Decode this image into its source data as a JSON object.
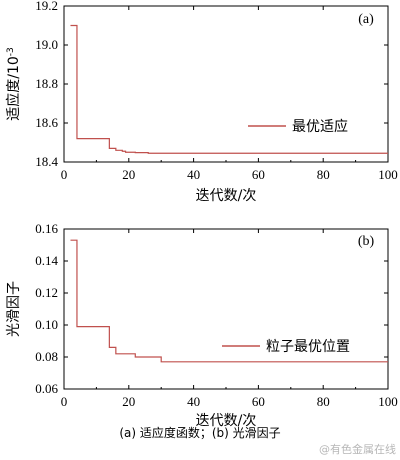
{
  "caption": "(a) 适应度函数；(b) 光滑因子",
  "watermark": "@有色金属在线",
  "colors": {
    "series": "#c0504d",
    "axis": "#000000"
  },
  "chart_data": [
    {
      "type": "line",
      "panel_label": "(a)",
      "xlabel": "迭代数/次",
      "ylabel": "适应度/10",
      "ylabel_exponent": "-3",
      "xlim": [
        0,
        100
      ],
      "ylim": [
        18.4,
        19.2
      ],
      "xticks": [
        0,
        20,
        40,
        60,
        80,
        100
      ],
      "xtick_labels": [
        "0",
        "20",
        "40",
        "60",
        "80",
        "100"
      ],
      "yticks": [
        18.4,
        18.6,
        18.8,
        19.0,
        19.2
      ],
      "ytick_labels": [
        "18.4",
        "18.6",
        "18.8",
        "19.0",
        "19.2"
      ],
      "legend_position": "right",
      "series": [
        {
          "name": "最优适应",
          "step": true,
          "x": [
            2,
            4,
            14,
            16,
            18,
            19,
            22,
            26,
            100
          ],
          "y": [
            19.1,
            18.52,
            18.47,
            18.46,
            18.455,
            18.45,
            18.448,
            18.445,
            18.445
          ]
        }
      ]
    },
    {
      "type": "line",
      "panel_label": "(b)",
      "xlabel": "迭代数/次",
      "ylabel": "光滑因子",
      "xlim": [
        0,
        100
      ],
      "ylim": [
        0.06,
        0.16
      ],
      "xticks": [
        0,
        20,
        40,
        60,
        80,
        100
      ],
      "xtick_labels": [
        "0",
        "20",
        "40",
        "60",
        "80",
        "100"
      ],
      "yticks": [
        0.06,
        0.08,
        0.1,
        0.12,
        0.14,
        0.16
      ],
      "ytick_labels": [
        "0.06",
        "0.08",
        "0.10",
        "0.12",
        "0.14",
        "0.16"
      ],
      "legend_position": "right",
      "series": [
        {
          "name": "粒子最优位置",
          "step": true,
          "x": [
            2,
            4,
            14,
            16,
            18,
            22,
            24,
            30,
            45,
            100
          ],
          "y": [
            0.153,
            0.099,
            0.086,
            0.082,
            0.082,
            0.08,
            0.08,
            0.077,
            0.077,
            0.077
          ]
        }
      ]
    }
  ]
}
